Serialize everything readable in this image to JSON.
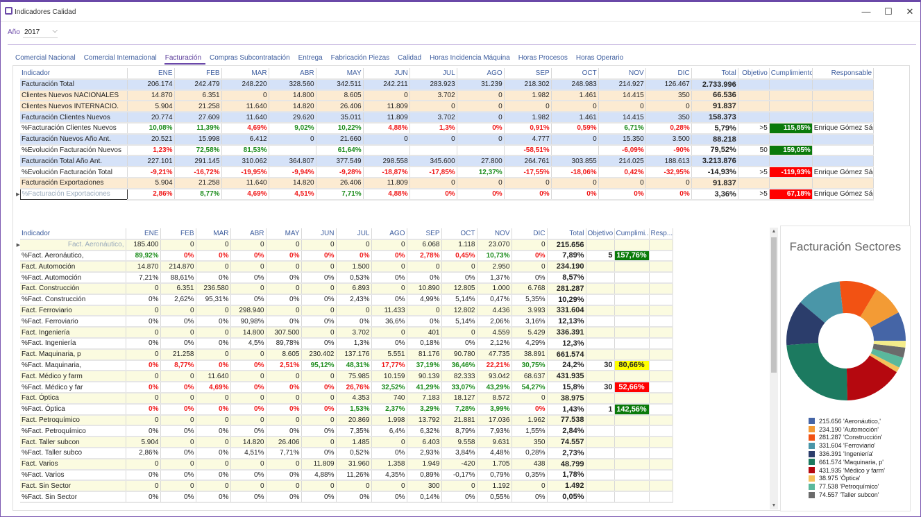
{
  "window": {
    "title": "Indicadores Calidad",
    "minimize": "—",
    "maximize": "☐",
    "close": "✕"
  },
  "filter": {
    "year_label": "Año",
    "year_value": "2017"
  },
  "tabs": [
    {
      "label": "Comercial Nacional"
    },
    {
      "label": "Comercial Internacional"
    },
    {
      "label": "Facturación",
      "active": true
    },
    {
      "label": "Compras Subcontratación"
    },
    {
      "label": "Entrega"
    },
    {
      "label": "Fabricación Piezas"
    },
    {
      "label": "Calidad"
    },
    {
      "label": "Horas Incidencia Máquina"
    },
    {
      "label": "Horas Procesos"
    },
    {
      "label": "Horas Operario"
    }
  ],
  "colors": {
    "green_cell": "#0a7a0a",
    "red_cell": "#ff0000",
    "yellow_cell": "#ffff00",
    "blue_row": "#d5e2f8",
    "orange_row": "#fcebd2",
    "yellow_row": "#fbfbe0"
  },
  "top_table": {
    "headers": [
      "Indicador",
      "ENE",
      "FEB",
      "MAR",
      "ABR",
      "MAY",
      "JUN",
      "JUL",
      "AGO",
      "SEP",
      "OCT",
      "NOV",
      "DIC",
      "Total",
      "Objetivo",
      "Cumplimiento",
      "Responsable"
    ],
    "rows": [
      {
        "bg": "blue",
        "name": "Facturación Total",
        "values": [
          "206.174",
          "242.479",
          "248.220",
          "328.560",
          "342.511",
          "242.211",
          "283.923",
          "31.239",
          "218.302",
          "248.983",
          "214.927",
          "126.467",
          "2.733.996"
        ],
        "objetivo": "",
        "cumplimiento": "",
        "responsable": ""
      },
      {
        "bg": "orange",
        "name": "Clientes Nuevos NACIONALES",
        "values": [
          "14.870",
          "6.351",
          "0",
          "14.800",
          "8.605",
          "0",
          "3.702",
          "0",
          "1.982",
          "1.461",
          "14.415",
          "350",
          "66.536"
        ],
        "objetivo": "",
        "cumplimiento": "",
        "responsable": ""
      },
      {
        "bg": "orange",
        "name": "Clientes Nuevos INTERNACIO.",
        "values": [
          "5.904",
          "21.258",
          "11.640",
          "14.820",
          "26.406",
          "11.809",
          "0",
          "0",
          "0",
          "0",
          "0",
          "0",
          "91.837"
        ],
        "objetivo": "",
        "cumplimiento": "",
        "responsable": ""
      },
      {
        "bg": "blue",
        "name": "Facturación Clientes Nuevos",
        "values": [
          "20.774",
          "27.609",
          "11.640",
          "29.620",
          "35.011",
          "11.809",
          "3.702",
          "0",
          "1.982",
          "1.461",
          "14.415",
          "350",
          "158.373"
        ],
        "objetivo": "",
        "cumplimiento": "",
        "responsable": ""
      },
      {
        "bg": "white",
        "name": "%Facturación Clientes Nuevos",
        "values": [
          "10,08%",
          "11,39%",
          "4,69%",
          "9,02%",
          "10,22%",
          "4,88%",
          "1,3%",
          "0%",
          "0,91%",
          "0,59%",
          "6,71%",
          "0,28%",
          "5,79%"
        ],
        "tones": "ggrggrrrrrgrg",
        "objetivo": ">5",
        "cumplimiento": "115,85%",
        "cumpl_status": "green",
        "responsable": "Enrique Gómez Sáez"
      },
      {
        "bg": "blue",
        "name": "Facturación Nuevos Año Ant.",
        "values": [
          "20.521",
          "15.998",
          "6.412",
          "0",
          "21.660",
          "0",
          "0",
          "0",
          "4.777",
          "0",
          "15.350",
          "3.500",
          "88.218"
        ],
        "objetivo": "",
        "cumplimiento": "",
        "responsable": ""
      },
      {
        "bg": "white",
        "name": "%Evolución Facturación Nuevos",
        "values": [
          "1,23%",
          "72,58%",
          "81,53%",
          "",
          "61,64%",
          "",
          "",
          "",
          "-58,51%",
          "",
          "-6,09%",
          "-90%",
          "79,52%"
        ],
        "tones": "rggngnnnrnrrg",
        "objetivo": "50",
        "cumplimiento": "159,05%",
        "cumpl_status": "green",
        "responsable": ""
      },
      {
        "bg": "blue",
        "name": "Facturación Total Año Ant.",
        "values": [
          "227.101",
          "291.145",
          "310.062",
          "364.807",
          "377.549",
          "298.558",
          "345.600",
          "27.800",
          "264.761",
          "303.855",
          "214.025",
          "188.613",
          "3.213.876"
        ],
        "objetivo": "",
        "cumplimiento": "",
        "responsable": ""
      },
      {
        "bg": "white",
        "name": "%Evolución Facturación Total",
        "values": [
          "-9,21%",
          "-16,72%",
          "-19,95%",
          "-9,94%",
          "-9,28%",
          "-18,87%",
          "-17,85%",
          "12,37%",
          "-17,55%",
          "-18,06%",
          "0,42%",
          "-32,95%",
          "-14,93%"
        ],
        "tones": "rrrrrrrgrrrrr",
        "objetivo": ">5",
        "cumplimiento": "-119,93%",
        "cumpl_status": "red",
        "responsable": "Enrique Gómez Sáez"
      },
      {
        "bg": "orange",
        "name": "Facturación Exportaciones",
        "values": [
          "5.904",
          "21.258",
          "11.640",
          "14.820",
          "26.406",
          "11.809",
          "0",
          "0",
          "0",
          "0",
          "0",
          "0",
          "91.837"
        ],
        "objetivo": "",
        "cumplimiento": "",
        "responsable": ""
      },
      {
        "bg": "white",
        "name": "%Facturación Exportaciones",
        "selected": true,
        "values": [
          "2,86%",
          "8,77%",
          "4,69%",
          "4,51%",
          "7,71%",
          "4,88%",
          "0%",
          "0%",
          "0%",
          "0%",
          "0%",
          "0%",
          "3,36%"
        ],
        "tones": "rgrrgrrrrrrrr",
        "objetivo": ">5",
        "cumplimiento": "67,18%",
        "cumpl_status": "red",
        "responsable": "Enrique Gómez Sáez"
      }
    ]
  },
  "bottom_table": {
    "headers": [
      "Indicador",
      "ENE",
      "FEB",
      "MAR",
      "ABR",
      "MAY",
      "JUN",
      "JUL",
      "AGO",
      "SEP",
      "OCT",
      "NOV",
      "DIC",
      "Total",
      "Objetivo",
      "Cumplimi...",
      "Resp..."
    ],
    "rows": [
      {
        "bg": "yellow",
        "name": "Fact. Aeronáutico,",
        "selected": true,
        "values": [
          "185.400",
          "0",
          "0",
          "0",
          "0",
          "0",
          "0",
          "0",
          "6.068",
          "1.118",
          "23.070",
          "0",
          "215.656"
        ]
      },
      {
        "bg": "white",
        "name": "%Fact. Aeronáutico,",
        "values": [
          "89,92%",
          "0%",
          "0%",
          "0%",
          "0%",
          "0%",
          "0%",
          "0%",
          "2,78%",
          "0,45%",
          "10,73%",
          "0%",
          "7,89%"
        ],
        "tones": "grrrrrrrrrgrg",
        "objetivo": "5",
        "cumplimiento": "157,76%",
        "cumpl_status": "green"
      },
      {
        "bg": "yellow",
        "name": "Fact. Automoción",
        "values": [
          "14.870",
          "214.870",
          "0",
          "0",
          "0",
          "0",
          "1.500",
          "0",
          "0",
          "0",
          "2.950",
          "0",
          "234.190"
        ]
      },
      {
        "bg": "white",
        "name": "%Fact. Automoción",
        "values": [
          "7,21%",
          "88,61%",
          "0%",
          "0%",
          "0%",
          "0%",
          "0,53%",
          "0%",
          "0%",
          "0%",
          "1,37%",
          "0%",
          "8,57%"
        ]
      },
      {
        "bg": "yellow",
        "name": "Fact. Construcción",
        "values": [
          "0",
          "6.351",
          "236.580",
          "0",
          "0",
          "0",
          "6.893",
          "0",
          "10.890",
          "12.805",
          "1.000",
          "6.768",
          "281.287"
        ]
      },
      {
        "bg": "white",
        "name": "%Fact. Construcción",
        "values": [
          "0%",
          "2,62%",
          "95,31%",
          "0%",
          "0%",
          "0%",
          "2,43%",
          "0%",
          "4,99%",
          "5,14%",
          "0,47%",
          "5,35%",
          "10,29%"
        ]
      },
      {
        "bg": "yellow",
        "name": "Fact. Ferroviario",
        "values": [
          "0",
          "0",
          "0",
          "298.940",
          "0",
          "0",
          "0",
          "11.433",
          "0",
          "12.802",
          "4.436",
          "3.993",
          "331.604"
        ]
      },
      {
        "bg": "white",
        "name": "%Fact. Ferroviario",
        "values": [
          "0%",
          "0%",
          "0%",
          "90,98%",
          "0%",
          "0%",
          "0%",
          "36,6%",
          "0%",
          "5,14%",
          "2,06%",
          "3,16%",
          "12,13%"
        ]
      },
      {
        "bg": "yellow",
        "name": "Fact. Ingeniería",
        "values": [
          "0",
          "0",
          "0",
          "14.800",
          "307.500",
          "0",
          "3.702",
          "0",
          "401",
          "0",
          "4.559",
          "5.429",
          "336.391"
        ]
      },
      {
        "bg": "white",
        "name": "%Fact. Ingeniería",
        "values": [
          "0%",
          "0%",
          "0%",
          "4,5%",
          "89,78%",
          "0%",
          "1,3%",
          "0%",
          "0,18%",
          "0%",
          "2,12%",
          "4,29%",
          "12,3%"
        ]
      },
      {
        "bg": "yellow",
        "name": "Fact. Maquinaria, p",
        "values": [
          "0",
          "21.258",
          "0",
          "0",
          "8.605",
          "230.402",
          "137.176",
          "5.551",
          "81.176",
          "90.780",
          "47.735",
          "38.891",
          "661.574"
        ]
      },
      {
        "bg": "white",
        "name": "%Fact. Maquinaria,",
        "values": [
          "0%",
          "8,77%",
          "0%",
          "0%",
          "2,51%",
          "95,12%",
          "48,31%",
          "17,77%",
          "37,19%",
          "36,46%",
          "22,21%",
          "30,75%",
          "24,2%"
        ],
        "tones": "rrrrrggrggrgr",
        "objetivo": "30",
        "cumplimiento": "80,66%",
        "cumpl_status": "yellow"
      },
      {
        "bg": "yellow",
        "name": "Fact. Médico y farm",
        "values": [
          "0",
          "0",
          "11.640",
          "0",
          "0",
          "0",
          "75.985",
          "10.159",
          "90.139",
          "82.333",
          "93.042",
          "68.637",
          "431.935"
        ]
      },
      {
        "bg": "white",
        "name": "%Fact. Médico y far",
        "values": [
          "0%",
          "0%",
          "4,69%",
          "0%",
          "0%",
          "0%",
          "26,76%",
          "32,52%",
          "41,29%",
          "33,07%",
          "43,29%",
          "54,27%",
          "15,8%"
        ],
        "tones": "rrrrrrrgggggr",
        "objetivo": "30",
        "cumplimiento": "52,66%",
        "cumpl_status": "red"
      },
      {
        "bg": "yellow",
        "name": "Fact. Óptica",
        "values": [
          "0",
          "0",
          "0",
          "0",
          "0",
          "0",
          "4.353",
          "740",
          "7.183",
          "18.127",
          "8.572",
          "0",
          "38.975"
        ]
      },
      {
        "bg": "white",
        "name": "%Fact. Óptica",
        "values": [
          "0%",
          "0%",
          "0%",
          "0%",
          "0%",
          "0%",
          "1,53%",
          "2,37%",
          "3,29%",
          "7,28%",
          "3,99%",
          "0%",
          "1,43%"
        ],
        "tones": "rrrrrrgggggrg",
        "objetivo": "1",
        "cumplimiento": "142,56%",
        "cumpl_status": "green"
      },
      {
        "bg": "yellow",
        "name": "Fact. Petroquímico",
        "values": [
          "0",
          "0",
          "0",
          "0",
          "0",
          "0",
          "20.869",
          "1.998",
          "13.792",
          "21.881",
          "17.036",
          "1.962",
          "77.538"
        ]
      },
      {
        "bg": "white",
        "name": "%Fact. Petroquímico",
        "values": [
          "0%",
          "0%",
          "0%",
          "0%",
          "0%",
          "0%",
          "7,35%",
          "6,4%",
          "6,32%",
          "8,79%",
          "7,93%",
          "1,55%",
          "2,84%"
        ]
      },
      {
        "bg": "yellow",
        "name": "Fact. Taller subcon",
        "values": [
          "5.904",
          "0",
          "0",
          "14.820",
          "26.406",
          "0",
          "1.485",
          "0",
          "6.403",
          "9.558",
          "9.631",
          "350",
          "74.557"
        ]
      },
      {
        "bg": "white",
        "name": "%Fact. Taller subco",
        "values": [
          "2,86%",
          "0%",
          "0%",
          "4,51%",
          "7,71%",
          "0%",
          "0,52%",
          "0%",
          "2,93%",
          "3,84%",
          "4,48%",
          "0,28%",
          "2,73%"
        ]
      },
      {
        "bg": "yellow",
        "name": "Fact. Varios",
        "values": [
          "0",
          "0",
          "0",
          "0",
          "0",
          "11.809",
          "31.960",
          "1.358",
          "1.949",
          "-420",
          "1.705",
          "438",
          "48.799"
        ]
      },
      {
        "bg": "white",
        "name": "%Fact. Varios",
        "values": [
          "0%",
          "0%",
          "0%",
          "0%",
          "0%",
          "4,88%",
          "11,26%",
          "4,35%",
          "0,89%",
          "-0,17%",
          "0,79%",
          "0,35%",
          "1,78%"
        ]
      },
      {
        "bg": "yellow",
        "name": "Fact. Sin Sector",
        "values": [
          "0",
          "0",
          "0",
          "0",
          "0",
          "0",
          "0",
          "0",
          "300",
          "0",
          "1.192",
          "0",
          "1.492"
        ]
      },
      {
        "bg": "white",
        "name": "%Fact. Sin Sector",
        "values": [
          "0%",
          "0%",
          "0%",
          "0%",
          "0%",
          "0%",
          "0%",
          "0%",
          "0,14%",
          "0%",
          "0,55%",
          "0%",
          "0,05%"
        ]
      }
    ]
  },
  "chart_data": {
    "type": "pie",
    "title": "Facturación Sectores",
    "legend_position": "bottom",
    "slices": [
      {
        "label": "215.656 'Aeronáutico,'",
        "value": 215656,
        "color": "#4565a6"
      },
      {
        "label": "234.190 'Automoción'",
        "value": 234190,
        "color": "#f39b35"
      },
      {
        "label": "281.287 'Construcción'",
        "value": 281287,
        "color": "#f25213"
      },
      {
        "label": "331.604 'Ferroviario'",
        "value": 331604,
        "color": "#4a96a8"
      },
      {
        "label": "336.391 'Ingeniería'",
        "value": 336391,
        "color": "#2b3d6b"
      },
      {
        "label": "661.574 'Maquinaria, p'",
        "value": 661574,
        "color": "#1c7a60"
      },
      {
        "label": "431.935 'Médico y farm'",
        "value": 431935,
        "color": "#b5080f"
      },
      {
        "label": "38.975 'Óptica'",
        "value": 38975,
        "color": "#f5c15a"
      },
      {
        "label": "77.538 'Petroquímico'",
        "value": 77538,
        "color": "#5ab89c"
      },
      {
        "label": "74.557 'Taller subcon'",
        "value": 74557,
        "color": "#6b6b6b"
      },
      {
        "value": 48799,
        "color": "#f4ec8a"
      },
      {
        "value": 1492,
        "color": "#cccccc"
      }
    ]
  }
}
